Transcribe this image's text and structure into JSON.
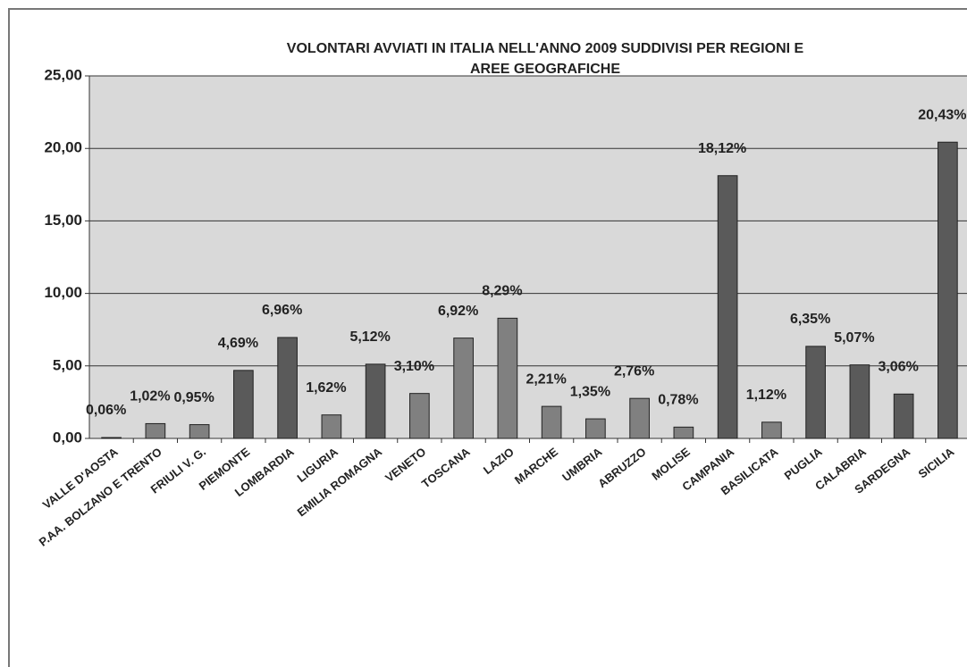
{
  "chart_data": {
    "type": "bar",
    "title": [
      "VOLONTARI AVVIATI IN ITALIA NELL'ANNO 2009 SUDDIVISI PER REGIONI E",
      "AREE GEOGRAFICHE"
    ],
    "categories": [
      "VALLE D'AOSTA",
      "P.AA. BOLZANO E TRENTO",
      "FRIULI V. G.",
      "PIEMONTE",
      "LOMBARDIA",
      "LIGURIA",
      "EMILIA ROMAGNA",
      "VENETO",
      "TOSCANA",
      "LAZIO",
      "MARCHE",
      "UMBRIA",
      "ABRUZZO",
      "MOLISE",
      "CAMPANIA",
      "BASILICATA",
      "PUGLIA",
      "CALABRIA",
      "SARDEGNA",
      "SICILIA"
    ],
    "values": [
      0.06,
      1.02,
      0.95,
      4.69,
      6.96,
      1.62,
      5.12,
      3.1,
      6.92,
      8.29,
      2.21,
      1.35,
      2.76,
      0.78,
      18.12,
      1.12,
      6.35,
      5.07,
      3.06,
      20.43
    ],
    "value_labels": [
      "0,06%",
      "1,02%",
      "0,95%",
      "4,69%",
      "6,96%",
      "1,62%",
      "5,12%",
      "3,10%",
      "6,92%",
      "8,29%",
      "2,21%",
      "1,35%",
      "2,76%",
      "0,78%",
      "18,12%",
      "1,12%",
      "6,35%",
      "5,07%",
      "3,06%",
      "20,43%"
    ],
    "colors": [
      "#808080",
      "#808080",
      "#808080",
      "#5a5a5a",
      "#5a5a5a",
      "#808080",
      "#5a5a5a",
      "#808080",
      "#808080",
      "#808080",
      "#808080",
      "#808080",
      "#808080",
      "#808080",
      "#5a5a5a",
      "#808080",
      "#5a5a5a",
      "#5a5a5a",
      "#5a5a5a",
      "#5a5a5a"
    ],
    "ylim": [
      0,
      25
    ],
    "yticks": [
      {
        "value": 0,
        "label": "0,00"
      },
      {
        "value": 5,
        "label": "5,00"
      },
      {
        "value": 10,
        "label": "10,00"
      },
      {
        "value": 15,
        "label": "15,00"
      },
      {
        "value": 20,
        "label": "20,00"
      },
      {
        "value": 25,
        "label": "25,00"
      }
    ],
    "grid": true
  }
}
